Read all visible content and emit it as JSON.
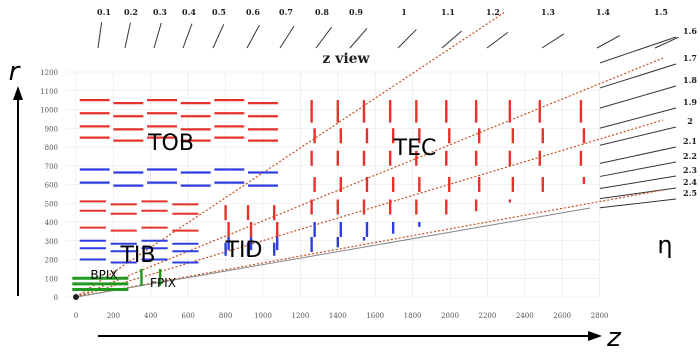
{
  "title": "z view",
  "axis_labels": {
    "r": "r",
    "z": "z",
    "eta": "η"
  },
  "regions": {
    "tob": "TOB",
    "tib": "TIB",
    "tid": "TID",
    "tec": "TEC",
    "bpix": "BPIX",
    "fpix": "FPIX"
  },
  "eta_ticks_top": [
    "0.1",
    "0.2",
    "0.3",
    "0.4",
    "0.5",
    "0.6",
    "0.7",
    "0.8",
    "0.9",
    "1",
    "1.1",
    "1.2",
    "1.3",
    "1.4",
    "1.5"
  ],
  "eta_ticks_right": [
    "1.6",
    "1.7",
    "1.8",
    "1.9",
    "2",
    "2.1",
    "2.2",
    "2.3",
    "2.4",
    "2.5"
  ],
  "r_ticks": [
    "0",
    "100",
    "200",
    "300",
    "400",
    "500",
    "600",
    "700",
    "800",
    "900",
    "1000",
    "1100",
    "1200"
  ],
  "z_ticks": [
    "0",
    "200",
    "400",
    "600",
    "800",
    "1000",
    "1200",
    "1400",
    "1600",
    "1800",
    "2000",
    "2200",
    "2400",
    "2600",
    "2800"
  ],
  "colors": {
    "tob": "#e8312a",
    "tib": "#2f3de0",
    "pixel": "#1f9a1f",
    "eta_line": "#c44f1c",
    "grid": "#e6e6e6",
    "tick": "#555555"
  }
}
